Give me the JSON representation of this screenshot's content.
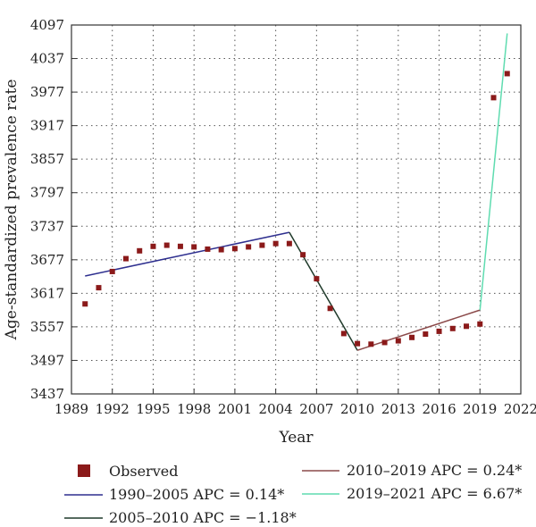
{
  "chart_data": {
    "type": "scatter",
    "title": "",
    "xlabel": "Year",
    "ylabel": "Age-standardized prevalence rate",
    "xlim": [
      1989,
      2022
    ],
    "ylim": [
      3437,
      4097
    ],
    "xticks": [
      1989,
      1992,
      1995,
      1998,
      2001,
      2004,
      2007,
      2010,
      2013,
      2016,
      2019,
      2022
    ],
    "yticks": [
      3437,
      3497,
      3557,
      3617,
      3677,
      3737,
      3797,
      3857,
      3917,
      3977,
      4037,
      4097
    ],
    "grid": true,
    "legend_position": "bottom",
    "observed": {
      "name": "Observed",
      "color": "#8b1a1a",
      "x": [
        1990,
        1991,
        1992,
        1993,
        1994,
        1995,
        1996,
        1997,
        1998,
        1999,
        2000,
        2001,
        2002,
        2003,
        2004,
        2005,
        2006,
        2007,
        2008,
        2009,
        2010,
        2011,
        2012,
        2013,
        2014,
        2015,
        2016,
        2017,
        2018,
        2019,
        2020,
        2021
      ],
      "y": [
        3598,
        3627,
        3656,
        3679,
        3693,
        3701,
        3703,
        3701,
        3700,
        3696,
        3695,
        3697,
        3700,
        3703,
        3706,
        3706,
        3686,
        3643,
        3590,
        3545,
        3527,
        3526,
        3529,
        3532,
        3538,
        3544,
        3549,
        3554,
        3558,
        3562,
        3967,
        4010
      ]
    },
    "segments": [
      {
        "name": "1990–2005 APC = 0.14*",
        "color": "#2e2f8f",
        "x": [
          1990,
          2005
        ],
        "y": [
          3648,
          3726
        ]
      },
      {
        "name": "2005–2010 APC = −1.18*",
        "color": "#1f3a2a",
        "x": [
          2005,
          2010
        ],
        "y": [
          3726,
          3515
        ]
      },
      {
        "name": "2010–2019 APC = 0.24*",
        "color": "#8b4a4a",
        "x": [
          2010,
          2019
        ],
        "y": [
          3515,
          3587
        ]
      },
      {
        "name": "2019–2021 APC = 6.67*",
        "color": "#5fdcb0",
        "x": [
          2019,
          2021
        ],
        "y": [
          3587,
          4082
        ]
      }
    ]
  }
}
